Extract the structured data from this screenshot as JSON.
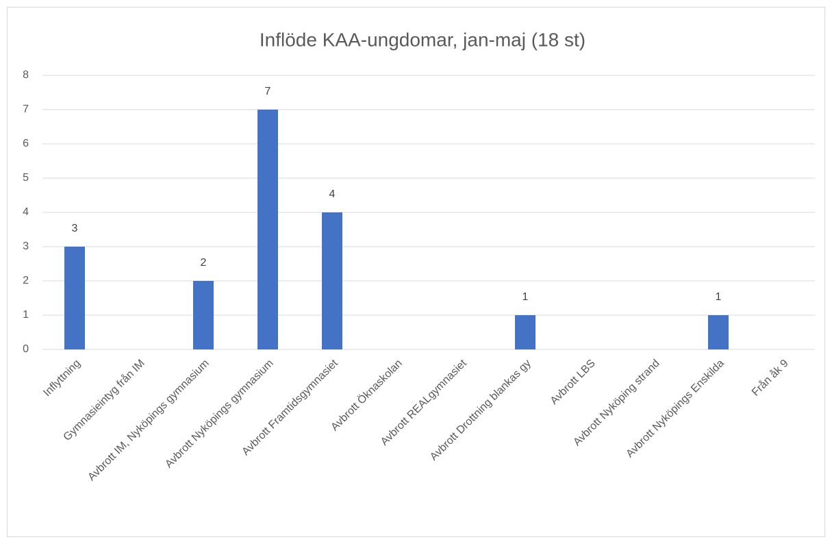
{
  "chart_data": {
    "type": "bar",
    "title": "Inflöde KAA-ungdomar, jan-maj (18 st)",
    "categories": [
      "Inflyttning",
      "Gymnasieintyg från IM",
      "Avbrott IM, Nyköpings gymnasium",
      "Avbrott Nyköpings gymnasium",
      "Avbrott Framtidsgymnasiet",
      "Avbrott Öknaskolan",
      "Avbrott REALgymnasiet",
      "Avbrott Drottning blankas gy",
      "Avbrott LBS",
      "Avbrott Nyköping strand",
      "Avbrott Nyköpings Enskilda",
      "Från åk 9"
    ],
    "values": [
      3,
      0,
      2,
      7,
      4,
      0,
      0,
      1,
      0,
      0,
      1,
      0
    ],
    "color": "#4472c4",
    "ylim": [
      0,
      8
    ],
    "yticks": [
      0,
      1,
      2,
      3,
      4,
      5,
      6,
      7,
      8
    ],
    "grid": true
  }
}
